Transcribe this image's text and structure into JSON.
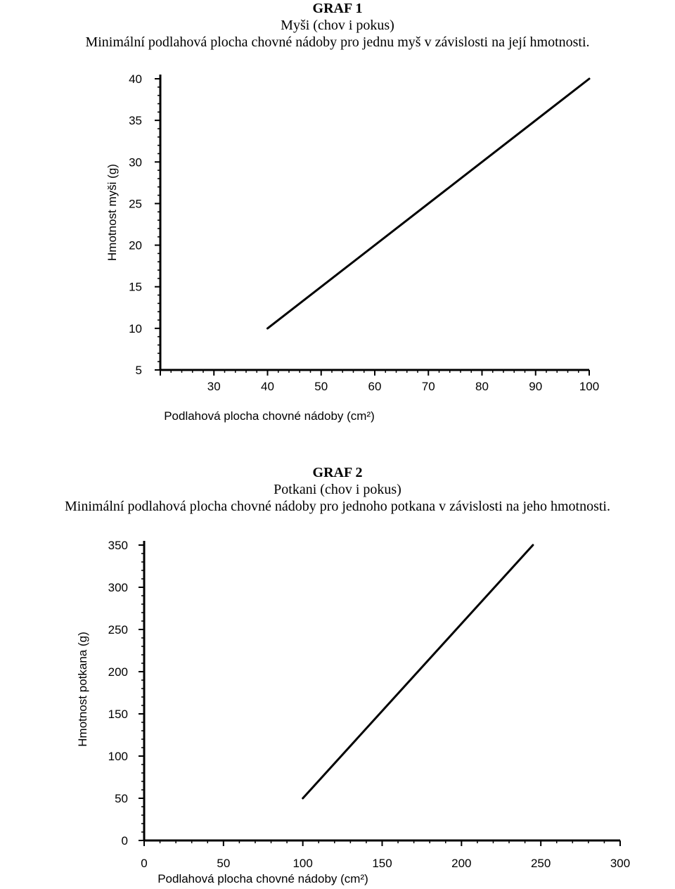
{
  "charts_captions": [
    {
      "heading": "GRAF 1",
      "subtitle": "Myši (chov i pokus)",
      "description": "Minimální podlahová plocha chovné nádoby pro jednu myš v závislosti na její hmotnosti."
    },
    {
      "heading": "GRAF 2",
      "subtitle": "Potkani (chov i pokus)",
      "description": "Minimální podlahová plocha chovné nádoby pro jednoho potkana v závislosti na jeho hmotnosti."
    }
  ],
  "chart_data": [
    {
      "type": "line",
      "title": "GRAF 1",
      "xlabel": "Podlahová plocha chovné nádoby (cm²)",
      "ylabel": "Hmotnost myši (g)",
      "xlim": [
        20,
        100
      ],
      "ylim": [
        5,
        40
      ],
      "xticks": [
        30,
        40,
        50,
        60,
        70,
        80,
        90,
        100
      ],
      "yticks": [
        5,
        10,
        15,
        20,
        25,
        30,
        35,
        40
      ],
      "x": [
        40,
        100
      ],
      "y": [
        10,
        40
      ],
      "grid": false,
      "line_color": "#000000"
    },
    {
      "type": "line",
      "title": "GRAF 2",
      "xlabel": "Podlahová plocha chovné nádoby (cm²)",
      "ylabel": "Hmotnost potkana (g)",
      "xlim": [
        0,
        300
      ],
      "ylim": [
        0,
        350
      ],
      "xticks": [
        0,
        50,
        100,
        150,
        200,
        250,
        300
      ],
      "yticks": [
        0,
        50,
        100,
        150,
        200,
        250,
        300,
        350
      ],
      "x": [
        100,
        245
      ],
      "y": [
        50,
        350
      ],
      "grid": false,
      "line_color": "#000000"
    }
  ]
}
